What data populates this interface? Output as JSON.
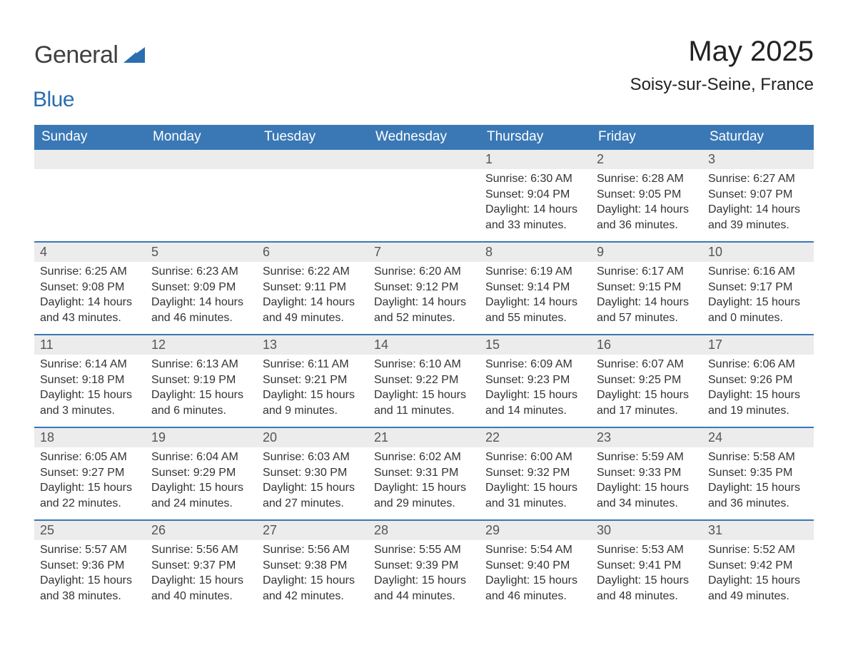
{
  "branding": {
    "logo_general": "General",
    "logo_blue": "Blue",
    "logo_icon_color": "#2a6db0"
  },
  "header": {
    "title": "May 2025",
    "location": "Soisy-sur-Seine, France"
  },
  "style": {
    "header_bg": "#3a78b5",
    "header_text": "#ffffff",
    "day_number_bg": "#ececec",
    "day_border": "#3a78b5",
    "text_color": "#333333",
    "page_bg": "#ffffff"
  },
  "weekdays": [
    "Sunday",
    "Monday",
    "Tuesday",
    "Wednesday",
    "Thursday",
    "Friday",
    "Saturday"
  ],
  "weeks": [
    [
      null,
      null,
      null,
      null,
      {
        "n": "1",
        "sr": "Sunrise: 6:30 AM",
        "ss": "Sunset: 9:04 PM",
        "d1": "Daylight: 14 hours",
        "d2": "and 33 minutes."
      },
      {
        "n": "2",
        "sr": "Sunrise: 6:28 AM",
        "ss": "Sunset: 9:05 PM",
        "d1": "Daylight: 14 hours",
        "d2": "and 36 minutes."
      },
      {
        "n": "3",
        "sr": "Sunrise: 6:27 AM",
        "ss": "Sunset: 9:07 PM",
        "d1": "Daylight: 14 hours",
        "d2": "and 39 minutes."
      }
    ],
    [
      {
        "n": "4",
        "sr": "Sunrise: 6:25 AM",
        "ss": "Sunset: 9:08 PM",
        "d1": "Daylight: 14 hours",
        "d2": "and 43 minutes."
      },
      {
        "n": "5",
        "sr": "Sunrise: 6:23 AM",
        "ss": "Sunset: 9:09 PM",
        "d1": "Daylight: 14 hours",
        "d2": "and 46 minutes."
      },
      {
        "n": "6",
        "sr": "Sunrise: 6:22 AM",
        "ss": "Sunset: 9:11 PM",
        "d1": "Daylight: 14 hours",
        "d2": "and 49 minutes."
      },
      {
        "n": "7",
        "sr": "Sunrise: 6:20 AM",
        "ss": "Sunset: 9:12 PM",
        "d1": "Daylight: 14 hours",
        "d2": "and 52 minutes."
      },
      {
        "n": "8",
        "sr": "Sunrise: 6:19 AM",
        "ss": "Sunset: 9:14 PM",
        "d1": "Daylight: 14 hours",
        "d2": "and 55 minutes."
      },
      {
        "n": "9",
        "sr": "Sunrise: 6:17 AM",
        "ss": "Sunset: 9:15 PM",
        "d1": "Daylight: 14 hours",
        "d2": "and 57 minutes."
      },
      {
        "n": "10",
        "sr": "Sunrise: 6:16 AM",
        "ss": "Sunset: 9:17 PM",
        "d1": "Daylight: 15 hours",
        "d2": "and 0 minutes."
      }
    ],
    [
      {
        "n": "11",
        "sr": "Sunrise: 6:14 AM",
        "ss": "Sunset: 9:18 PM",
        "d1": "Daylight: 15 hours",
        "d2": "and 3 minutes."
      },
      {
        "n": "12",
        "sr": "Sunrise: 6:13 AM",
        "ss": "Sunset: 9:19 PM",
        "d1": "Daylight: 15 hours",
        "d2": "and 6 minutes."
      },
      {
        "n": "13",
        "sr": "Sunrise: 6:11 AM",
        "ss": "Sunset: 9:21 PM",
        "d1": "Daylight: 15 hours",
        "d2": "and 9 minutes."
      },
      {
        "n": "14",
        "sr": "Sunrise: 6:10 AM",
        "ss": "Sunset: 9:22 PM",
        "d1": "Daylight: 15 hours",
        "d2": "and 11 minutes."
      },
      {
        "n": "15",
        "sr": "Sunrise: 6:09 AM",
        "ss": "Sunset: 9:23 PM",
        "d1": "Daylight: 15 hours",
        "d2": "and 14 minutes."
      },
      {
        "n": "16",
        "sr": "Sunrise: 6:07 AM",
        "ss": "Sunset: 9:25 PM",
        "d1": "Daylight: 15 hours",
        "d2": "and 17 minutes."
      },
      {
        "n": "17",
        "sr": "Sunrise: 6:06 AM",
        "ss": "Sunset: 9:26 PM",
        "d1": "Daylight: 15 hours",
        "d2": "and 19 minutes."
      }
    ],
    [
      {
        "n": "18",
        "sr": "Sunrise: 6:05 AM",
        "ss": "Sunset: 9:27 PM",
        "d1": "Daylight: 15 hours",
        "d2": "and 22 minutes."
      },
      {
        "n": "19",
        "sr": "Sunrise: 6:04 AM",
        "ss": "Sunset: 9:29 PM",
        "d1": "Daylight: 15 hours",
        "d2": "and 24 minutes."
      },
      {
        "n": "20",
        "sr": "Sunrise: 6:03 AM",
        "ss": "Sunset: 9:30 PM",
        "d1": "Daylight: 15 hours",
        "d2": "and 27 minutes."
      },
      {
        "n": "21",
        "sr": "Sunrise: 6:02 AM",
        "ss": "Sunset: 9:31 PM",
        "d1": "Daylight: 15 hours",
        "d2": "and 29 minutes."
      },
      {
        "n": "22",
        "sr": "Sunrise: 6:00 AM",
        "ss": "Sunset: 9:32 PM",
        "d1": "Daylight: 15 hours",
        "d2": "and 31 minutes."
      },
      {
        "n": "23",
        "sr": "Sunrise: 5:59 AM",
        "ss": "Sunset: 9:33 PM",
        "d1": "Daylight: 15 hours",
        "d2": "and 34 minutes."
      },
      {
        "n": "24",
        "sr": "Sunrise: 5:58 AM",
        "ss": "Sunset: 9:35 PM",
        "d1": "Daylight: 15 hours",
        "d2": "and 36 minutes."
      }
    ],
    [
      {
        "n": "25",
        "sr": "Sunrise: 5:57 AM",
        "ss": "Sunset: 9:36 PM",
        "d1": "Daylight: 15 hours",
        "d2": "and 38 minutes."
      },
      {
        "n": "26",
        "sr": "Sunrise: 5:56 AM",
        "ss": "Sunset: 9:37 PM",
        "d1": "Daylight: 15 hours",
        "d2": "and 40 minutes."
      },
      {
        "n": "27",
        "sr": "Sunrise: 5:56 AM",
        "ss": "Sunset: 9:38 PM",
        "d1": "Daylight: 15 hours",
        "d2": "and 42 minutes."
      },
      {
        "n": "28",
        "sr": "Sunrise: 5:55 AM",
        "ss": "Sunset: 9:39 PM",
        "d1": "Daylight: 15 hours",
        "d2": "and 44 minutes."
      },
      {
        "n": "29",
        "sr": "Sunrise: 5:54 AM",
        "ss": "Sunset: 9:40 PM",
        "d1": "Daylight: 15 hours",
        "d2": "and 46 minutes."
      },
      {
        "n": "30",
        "sr": "Sunrise: 5:53 AM",
        "ss": "Sunset: 9:41 PM",
        "d1": "Daylight: 15 hours",
        "d2": "and 48 minutes."
      },
      {
        "n": "31",
        "sr": "Sunrise: 5:52 AM",
        "ss": "Sunset: 9:42 PM",
        "d1": "Daylight: 15 hours",
        "d2": "and 49 minutes."
      }
    ]
  ]
}
